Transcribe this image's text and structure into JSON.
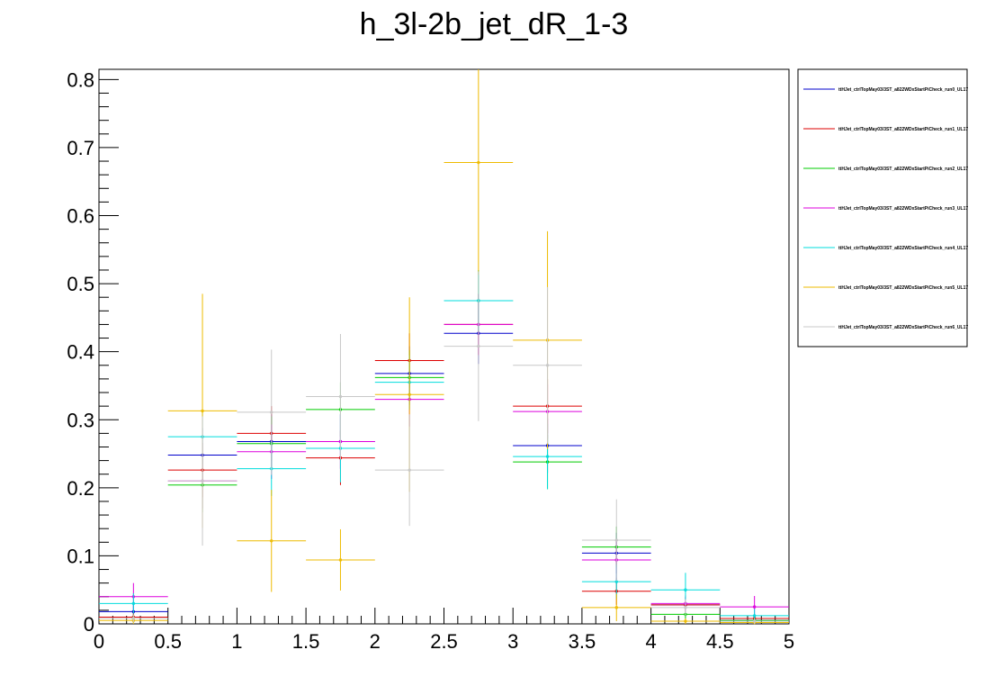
{
  "chart_data": {
    "type": "scatter",
    "title": "h_3l-2b_jet_dR_1-3",
    "xlabel": "",
    "ylabel": "",
    "xlim": [
      0,
      5
    ],
    "ylim": [
      0,
      0.815
    ],
    "x_ticks": [
      "0",
      "0.5",
      "1",
      "1.5",
      "2",
      "2.5",
      "3",
      "3.5",
      "4",
      "4.5",
      "5"
    ],
    "y_ticks": [
      "0",
      "0.1",
      "0.2",
      "0.3",
      "0.4",
      "0.5",
      "0.6",
      "0.7",
      "0.8"
    ],
    "bin_edges": [
      0,
      0.5,
      1,
      1.5,
      2,
      2.5,
      3,
      3.5,
      4,
      4.5,
      5
    ],
    "x": [
      0.25,
      0.75,
      1.25,
      1.75,
      2.25,
      2.75,
      3.25,
      3.75,
      4.25,
      4.75
    ],
    "legend_position": "top-right",
    "grid": false,
    "series": [
      {
        "name": "ttHJet_ctrlTopMay03/3ST_a822WDxStartPiCheck_run0_UL17",
        "color": "#0000cc",
        "values": [
          0.018,
          0.248,
          0.268,
          0.268,
          0.368,
          0.427,
          0.262,
          0.104,
          0.028,
          0.005
        ],
        "errors": [
          0.01,
          0.04,
          0.04,
          0.04,
          0.04,
          0.045,
          0.04,
          0.03,
          0.012,
          0.005
        ]
      },
      {
        "name": "ttHJet_ctrlTopMay03/3ST_a822WDxStartPiCheck_run1_UL17",
        "color": "#dd0000",
        "values": [
          0.01,
          0.226,
          0.28,
          0.244,
          0.387,
          0.44,
          0.32,
          0.048,
          0.028,
          0.008
        ],
        "errors": [
          0.008,
          0.04,
          0.04,
          0.04,
          0.04,
          0.045,
          0.04,
          0.02,
          0.012,
          0.006
        ]
      },
      {
        "name": "ttHJet_ctrlTopMay03/3ST_a822WDxStartPiCheck_run2_UL17",
        "color": "#00cc00",
        "values": [
          0.008,
          0.204,
          0.265,
          0.315,
          0.362,
          0.475,
          0.238,
          0.113,
          0.014,
          0.005
        ],
        "errors": [
          0.006,
          0.04,
          0.04,
          0.04,
          0.04,
          0.045,
          0.04,
          0.03,
          0.01,
          0.005
        ]
      },
      {
        "name": "ttHJet_ctrlTopMay03/3ST_a822WDxStartPiCheck_run3_UL17",
        "color": "#dd00dd",
        "values": [
          0.04,
          0.21,
          0.253,
          0.268,
          0.33,
          0.44,
          0.312,
          0.094,
          0.03,
          0.025
        ],
        "errors": [
          0.02,
          0.04,
          0.04,
          0.04,
          0.04,
          0.045,
          0.04,
          0.03,
          0.012,
          0.016
        ]
      },
      {
        "name": "ttHJet_ctrlTopMay03/3ST_a822WDxStartPiCheck_run4_UL17",
        "color": "#00dddd",
        "values": [
          0.03,
          0.275,
          0.228,
          0.258,
          0.355,
          0.475,
          0.246,
          0.062,
          0.05,
          0.012
        ],
        "errors": [
          0.015,
          0.04,
          0.04,
          0.05,
          0.04,
          0.045,
          0.048,
          0.025,
          0.025,
          0.01
        ]
      },
      {
        "name": "ttHJet_ctrlTopMay03/3ST_a822WDxStartPiCheck_run5_UL17",
        "color": "#eebb00",
        "values": [
          0.005,
          0.313,
          0.122,
          0.094,
          0.337,
          0.678,
          0.417,
          0.024,
          0.004,
          0.002
        ],
        "errors": [
          0.005,
          0.172,
          0.075,
          0.045,
          0.143,
          0.165,
          0.16,
          0.02,
          0.004,
          0.002
        ]
      },
      {
        "name": "ttHJet_ctrlTopMay03/3ST_a822WDxStartPiCheck_run6_UL17",
        "color": "#c8c8c8",
        "values": [
          0.008,
          0.21,
          0.311,
          0.334,
          0.226,
          0.408,
          0.38,
          0.123,
          0.024,
          0.004
        ],
        "errors": [
          0.006,
          0.095,
          0.092,
          0.092,
          0.082,
          0.11,
          0.115,
          0.06,
          0.012,
          0.004
        ]
      }
    ]
  }
}
